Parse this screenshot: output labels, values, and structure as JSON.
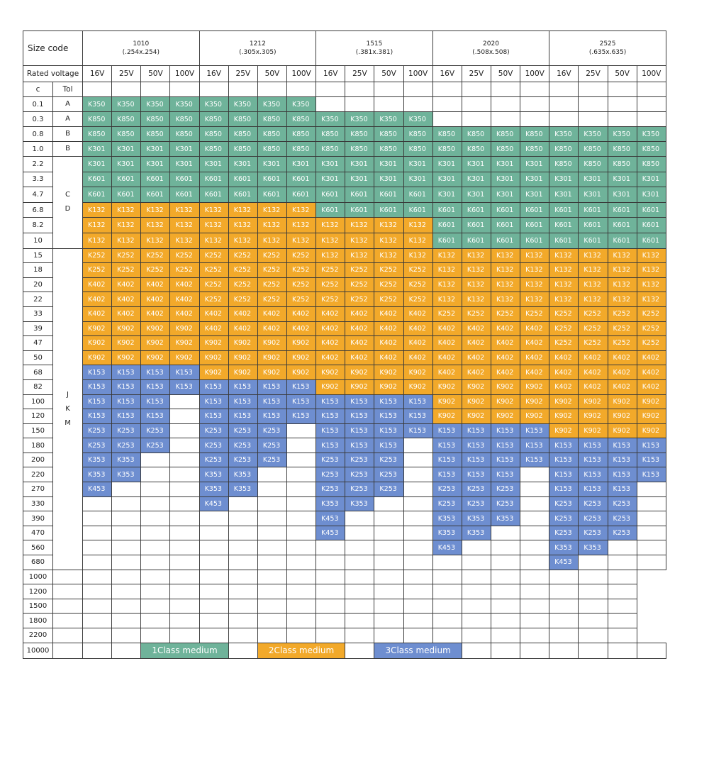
{
  "header": {
    "size_code_label": "Size code",
    "rated_voltage_label": "Rated voltage",
    "c_label": "c",
    "tol_label": "Tol",
    "sizes": [
      {
        "code": "1010",
        "dim": "(.254x.254)"
      },
      {
        "code": "1212",
        "dim": "(.305x.305)"
      },
      {
        "code": "1515",
        "dim": "(.381x.381)"
      },
      {
        "code": "2020",
        "dim": "(.508x.508)"
      },
      {
        "code": "2525",
        "dim": "(.635x.635)"
      }
    ],
    "voltages": [
      "16V",
      "25V",
      "50V",
      "100V"
    ]
  },
  "colors": {
    "class1": "#6fb39a",
    "class2": "#f2a92a",
    "class3": "#6e8ed0"
  },
  "tolerances": [
    {
      "label": "A",
      "rows": 1
    },
    {
      "label": "A",
      "rows": 1
    },
    {
      "label": "B",
      "rows": 1
    },
    {
      "label": "B",
      "rows": 1
    },
    {
      "label": "C\nD",
      "rows": 6
    },
    {
      "label": "J\nK\nM",
      "rows": 22
    }
  ],
  "rows": [
    {
      "c": "0.1",
      "cells": [
        "K350",
        "K350",
        "K350",
        "K350",
        "K350",
        "K350",
        "K350",
        "K350",
        "",
        "",
        "",
        "",
        "",
        "",
        "",
        "",
        "",
        "",
        "",
        ""
      ]
    },
    {
      "c": "0.3",
      "cells": [
        "K850",
        "K850",
        "K850",
        "K850",
        "K850",
        "K850",
        "K850",
        "K850",
        "K350",
        "K350",
        "K350",
        "K350",
        "",
        "",
        "",
        "",
        "",
        "",
        "",
        ""
      ]
    },
    {
      "c": "0.8",
      "cells": [
        "K850",
        "K850",
        "K850",
        "K850",
        "K850",
        "K850",
        "K850",
        "K850",
        "K850",
        "K850",
        "K850",
        "K850",
        "K850",
        "K850",
        "K850",
        "K850",
        "K350",
        "K350",
        "K350",
        "K350"
      ]
    },
    {
      "c": "1.0",
      "cells": [
        "K301",
        "K301",
        "K301",
        "K301",
        "K850",
        "K850",
        "K850",
        "K850",
        "K850",
        "K850",
        "K850",
        "K850",
        "K850",
        "K850",
        "K850",
        "K850",
        "K850",
        "K850",
        "K850",
        "K850"
      ]
    },
    {
      "c": "2.2",
      "cells": [
        "K301",
        "K301",
        "K301",
        "K301",
        "K301",
        "K301",
        "K301",
        "K301",
        "K301",
        "K301",
        "K301",
        "K301",
        "K301",
        "K301",
        "K301",
        "K301",
        "K850",
        "K850",
        "K850",
        "K850"
      ]
    },
    {
      "c": "3.3",
      "cells": [
        "K601",
        "K601",
        "K601",
        "K601",
        "K601",
        "K601",
        "K601",
        "K601",
        "K301",
        "K301",
        "K301",
        "K301",
        "K301",
        "K301",
        "K301",
        "K301",
        "K301",
        "K301",
        "K301",
        "K301"
      ]
    },
    {
      "c": "4.7",
      "cells": [
        "K601",
        "K601",
        "K601",
        "K601",
        "K601",
        "K601",
        "K601",
        "K601",
        "K601",
        "K601",
        "K601",
        "K601",
        "K301",
        "K301",
        "K301",
        "K301",
        "K301",
        "K301",
        "K301",
        "K301"
      ]
    },
    {
      "c": "6.8",
      "cells": [
        "K132",
        "K132",
        "K132",
        "K132",
        "K132",
        "K132",
        "K132",
        "K132",
        "K601",
        "K601",
        "K601",
        "K601",
        "K601",
        "K601",
        "K601",
        "K601",
        "K601",
        "K601",
        "K601",
        "K601"
      ]
    },
    {
      "c": "8.2",
      "cells": [
        "K132",
        "K132",
        "K132",
        "K132",
        "K132",
        "K132",
        "K132",
        "K132",
        "K132",
        "K132",
        "K132",
        "K132",
        "K601",
        "K601",
        "K601",
        "K601",
        "K601",
        "K601",
        "K601",
        "K601"
      ]
    },
    {
      "c": "10",
      "cells": [
        "K132",
        "K132",
        "K132",
        "K132",
        "K132",
        "K132",
        "K132",
        "K132",
        "K132",
        "K132",
        "K132",
        "K132",
        "K601",
        "K601",
        "K601",
        "K601",
        "K601",
        "K601",
        "K601",
        "K601"
      ]
    },
    {
      "c": "15",
      "cells": [
        "K252",
        "K252",
        "K252",
        "K252",
        "K252",
        "K252",
        "K252",
        "K252",
        "K132",
        "K132",
        "K132",
        "K132",
        "K132",
        "K132",
        "K132",
        "K132",
        "K132",
        "K132",
        "K132",
        "K132"
      ]
    },
    {
      "c": "18",
      "cells": [
        "K252",
        "K252",
        "K252",
        "K252",
        "K252",
        "K252",
        "K252",
        "K252",
        "K252",
        "K252",
        "K252",
        "K252",
        "K132",
        "K132",
        "K132",
        "K132",
        "K132",
        "K132",
        "K132",
        "K132"
      ]
    },
    {
      "c": "20",
      "cells": [
        "K402",
        "K402",
        "K402",
        "K402",
        "K252",
        "K252",
        "K252",
        "K252",
        "K252",
        "K252",
        "K252",
        "K252",
        "K132",
        "K132",
        "K132",
        "K132",
        "K132",
        "K132",
        "K132",
        "K132"
      ]
    },
    {
      "c": "22",
      "cells": [
        "K402",
        "K402",
        "K402",
        "K402",
        "K252",
        "K252",
        "K252",
        "K252",
        "K252",
        "K252",
        "K252",
        "K252",
        "K132",
        "K132",
        "K132",
        "K132",
        "K132",
        "K132",
        "K132",
        "K132"
      ]
    },
    {
      "c": "33",
      "cells": [
        "K402",
        "K402",
        "K402",
        "K402",
        "K402",
        "K402",
        "K402",
        "K402",
        "K402",
        "K402",
        "K402",
        "K402",
        "K252",
        "K252",
        "K252",
        "K252",
        "K252",
        "K252",
        "K252",
        "K252"
      ]
    },
    {
      "c": "39",
      "cells": [
        "K902",
        "K902",
        "K902",
        "K902",
        "K402",
        "K402",
        "K402",
        "K402",
        "K402",
        "K402",
        "K402",
        "K402",
        "K402",
        "K402",
        "K402",
        "K402",
        "K252",
        "K252",
        "K252",
        "K252"
      ]
    },
    {
      "c": "47",
      "cells": [
        "K902",
        "K902",
        "K902",
        "K902",
        "K902",
        "K902",
        "K902",
        "K902",
        "K402",
        "K402",
        "K402",
        "K402",
        "K402",
        "K402",
        "K402",
        "K402",
        "K252",
        "K252",
        "K252",
        "K252"
      ]
    },
    {
      "c": "50",
      "cells": [
        "K902",
        "K902",
        "K902",
        "K902",
        "K902",
        "K902",
        "K902",
        "K902",
        "K402",
        "K402",
        "K402",
        "K402",
        "K402",
        "K402",
        "K402",
        "K402",
        "K402",
        "K402",
        "K402",
        "K402"
      ]
    },
    {
      "c": "68",
      "cells": [
        "K153",
        "K153",
        "K153",
        "K153",
        "K902",
        "K902",
        "K902",
        "K902",
        "K902",
        "K902",
        "K902",
        "K902",
        "K402",
        "K402",
        "K402",
        "K402",
        "K402",
        "K402",
        "K402",
        "K402"
      ]
    },
    {
      "c": "82",
      "cells": [
        "K153",
        "K153",
        "K153",
        "K153",
        "K153",
        "K153",
        "K153",
        "K153",
        "K902",
        "K902",
        "K902",
        "K902",
        "K902",
        "K902",
        "K902",
        "K902",
        "K402",
        "K402",
        "K402",
        "K402"
      ]
    },
    {
      "c": "100",
      "cells": [
        "K153",
        "K153",
        "K153",
        "",
        "K153",
        "K153",
        "K153",
        "K153",
        "K153",
        "K153",
        "K153",
        "K153",
        "K902",
        "K902",
        "K902",
        "K902",
        "K902",
        "K902",
        "K902",
        "K902"
      ]
    },
    {
      "c": "120",
      "cells": [
        "K153",
        "K153",
        "K153",
        "",
        "K153",
        "K153",
        "K153",
        "K153",
        "K153",
        "K153",
        "K153",
        "K153",
        "K902",
        "K902",
        "K902",
        "K902",
        "K902",
        "K902",
        "K902",
        "K902"
      ]
    },
    {
      "c": "150",
      "cells": [
        "K253",
        "K253",
        "K253",
        "",
        "K253",
        "K253",
        "K253",
        "",
        "K153",
        "K153",
        "K153",
        "K153",
        "K153",
        "K153",
        "K153",
        "K153",
        "K902",
        "K902",
        "K902",
        "K902"
      ]
    },
    {
      "c": "180",
      "cells": [
        "K253",
        "K253",
        "K253",
        "",
        "K253",
        "K253",
        "K253",
        "",
        "K153",
        "K153",
        "K153",
        "",
        "K153",
        "K153",
        "K153",
        "K153",
        "K153",
        "K153",
        "K153",
        "K153"
      ]
    },
    {
      "c": "200",
      "cells": [
        "K353",
        "K353",
        "",
        "",
        "K253",
        "K253",
        "K253",
        "",
        "K253",
        "K253",
        "K253",
        "",
        "K153",
        "K153",
        "K153",
        "K153",
        "K153",
        "K153",
        "K153",
        "K153"
      ]
    },
    {
      "c": "220",
      "cells": [
        "K353",
        "K353",
        "",
        "",
        "K353",
        "K353",
        "",
        "",
        "K253",
        "K253",
        "K253",
        "",
        "K153",
        "K153",
        "K153",
        "",
        "K153",
        "K153",
        "K153",
        "K153"
      ]
    },
    {
      "c": "270",
      "cells": [
        "K453",
        "",
        "",
        "",
        "K353",
        "K353",
        "",
        "",
        "K253",
        "K253",
        "K253",
        "",
        "K253",
        "K253",
        "K253",
        "",
        "K153",
        "K153",
        "K153",
        ""
      ]
    },
    {
      "c": "330",
      "cells": [
        "",
        "",
        "",
        "",
        "K453",
        "",
        "",
        "",
        "K353",
        "K353",
        "",
        "",
        "K253",
        "K253",
        "K253",
        "",
        "K253",
        "K253",
        "K253",
        ""
      ]
    },
    {
      "c": "390",
      "cells": [
        "",
        "",
        "",
        "",
        "",
        "",
        "",
        "",
        "K453",
        "",
        "",
        "",
        "K353",
        "K353",
        "K353",
        "",
        "K253",
        "K253",
        "K253",
        ""
      ]
    },
    {
      "c": "470",
      "cells": [
        "",
        "",
        "",
        "",
        "",
        "",
        "",
        "",
        "K453",
        "",
        "",
        "",
        "K353",
        "K353",
        "",
        "",
        "K253",
        "K253",
        "K253",
        ""
      ]
    },
    {
      "c": "560",
      "cells": [
        "",
        "",
        "",
        "",
        "",
        "",
        "",
        "",
        "",
        "",
        "",
        "",
        "K453",
        "",
        "",
        "",
        "K353",
        "K353",
        "",
        ""
      ]
    },
    {
      "c": "680",
      "cells": [
        "",
        "",
        "",
        "",
        "",
        "",
        "",
        "",
        "",
        "",
        "",
        "",
        "",
        "",
        "",
        "",
        "K453",
        "",
        "",
        ""
      ]
    },
    {
      "c": "1000",
      "cells": [
        "",
        "",
        "",
        "",
        "",
        "",
        "",
        "",
        "",
        "",
        "",
        "",
        "",
        "",
        "",
        "",
        "",
        "",
        "",
        ""
      ]
    },
    {
      "c": "1200",
      "cells": [
        "",
        "",
        "",
        "",
        "",
        "",
        "",
        "",
        "",
        "",
        "",
        "",
        "",
        "",
        "",
        "",
        "",
        "",
        "",
        ""
      ]
    },
    {
      "c": "1500",
      "cells": [
        "",
        "",
        "",
        "",
        "",
        "",
        "",
        "",
        "",
        "",
        "",
        "",
        "",
        "",
        "",
        "",
        "",
        "",
        "",
        ""
      ]
    },
    {
      "c": "1800",
      "cells": [
        "",
        "",
        "",
        "",
        "",
        "",
        "",
        "",
        "",
        "",
        "",
        "",
        "",
        "",
        "",
        "",
        "",
        "",
        "",
        ""
      ]
    },
    {
      "c": "2200",
      "cells": [
        "",
        "",
        "",
        "",
        "",
        "",
        "",
        "",
        "",
        "",
        "",
        "",
        "",
        "",
        "",
        "",
        "",
        "",
        "",
        ""
      ]
    }
  ],
  "legend": {
    "c": "10000",
    "items": [
      {
        "label": "1Class medium",
        "class": "c1"
      },
      {
        "label": "2Class medium",
        "class": "c2"
      },
      {
        "label": "3Class medium",
        "class": "c3"
      }
    ]
  }
}
